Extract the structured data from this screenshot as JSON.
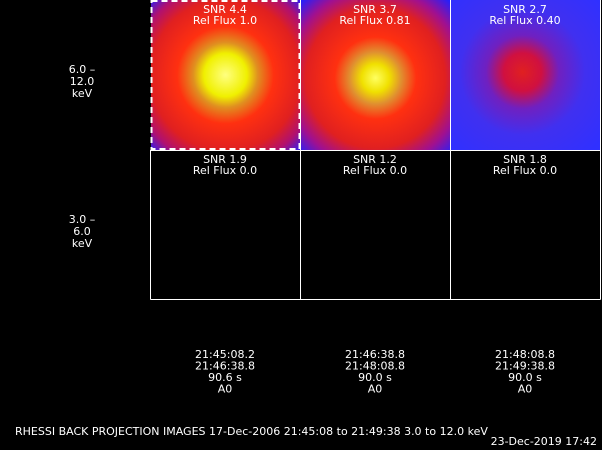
{
  "rows": [
    {
      "label": [
        "6.0 –",
        "12.0",
        "keV"
      ],
      "panels": [
        {
          "snr": "SNR 4.4",
          "flux": "Rel Flux 1.0"
        },
        {
          "snr": "SNR 3.7",
          "flux": "Rel Flux 0.81"
        },
        {
          "snr": "SNR 2.7",
          "flux": "Rel Flux 0.40"
        }
      ]
    },
    {
      "label": [
        "3.0 –",
        "6.0",
        "keV"
      ],
      "panels": [
        {
          "snr": "SNR 1.9",
          "flux": "Rel Flux 0.0"
        },
        {
          "snr": "SNR 1.2",
          "flux": "Rel Flux 0.0"
        },
        {
          "snr": "SNR 1.8",
          "flux": "Rel Flux 0.0"
        }
      ]
    }
  ],
  "columns": [
    {
      "start": "21:45:08.2",
      "end": "21:46:38.8",
      "duration": "90.6 s",
      "detector": "A0"
    },
    {
      "start": "21:46:38.8",
      "end": "21:48:08.8",
      "duration": "90.0 s",
      "detector": "A0"
    },
    {
      "start": "21:48:08.8",
      "end": "21:49:38.8",
      "duration": "90.0 s",
      "detector": "A0"
    }
  ],
  "title": "RHESSI BACK PROJECTION IMAGES 17-Dec-2006 21:45:08 to 21:49:38 3.0 to 12.0 keV",
  "timestamp": "23-Dec-2019 17:42"
}
